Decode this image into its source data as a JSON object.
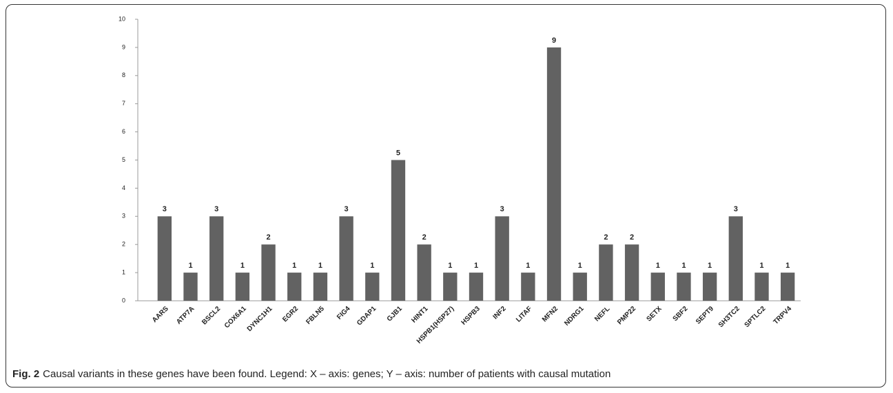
{
  "chart_data": {
    "type": "bar",
    "categories": [
      "AARS",
      "ATP7A",
      "BSCL2",
      "COX6A1",
      "DYNC1H1",
      "EGR2",
      "FBLN5",
      "FIG4",
      "GDAP1",
      "GJB1",
      "HINT1",
      "HSPB1(HSP27)",
      "HSPB3",
      "INF2",
      "LITAF",
      "MFN2",
      "NDRG1",
      "NEFL",
      "PMP22",
      "SETX",
      "SBF2",
      "SEPT9",
      "SH3TC2",
      "SPTLC2",
      "TRPV4"
    ],
    "values": [
      3,
      1,
      3,
      1,
      2,
      1,
      1,
      3,
      1,
      5,
      2,
      1,
      1,
      3,
      1,
      9,
      1,
      2,
      2,
      1,
      1,
      1,
      3,
      1,
      1
    ],
    "color": "#626262",
    "ylim": [
      0,
      10
    ],
    "yticks": [
      0,
      1,
      2,
      3,
      4,
      5,
      6,
      7,
      8,
      9,
      10
    ],
    "grid": false
  },
  "caption": {
    "label": "Fig. 2",
    "text": "Causal variants in these genes have been found. Legend: X – axis: genes; Y – axis: number of patients with causal mutation"
  }
}
